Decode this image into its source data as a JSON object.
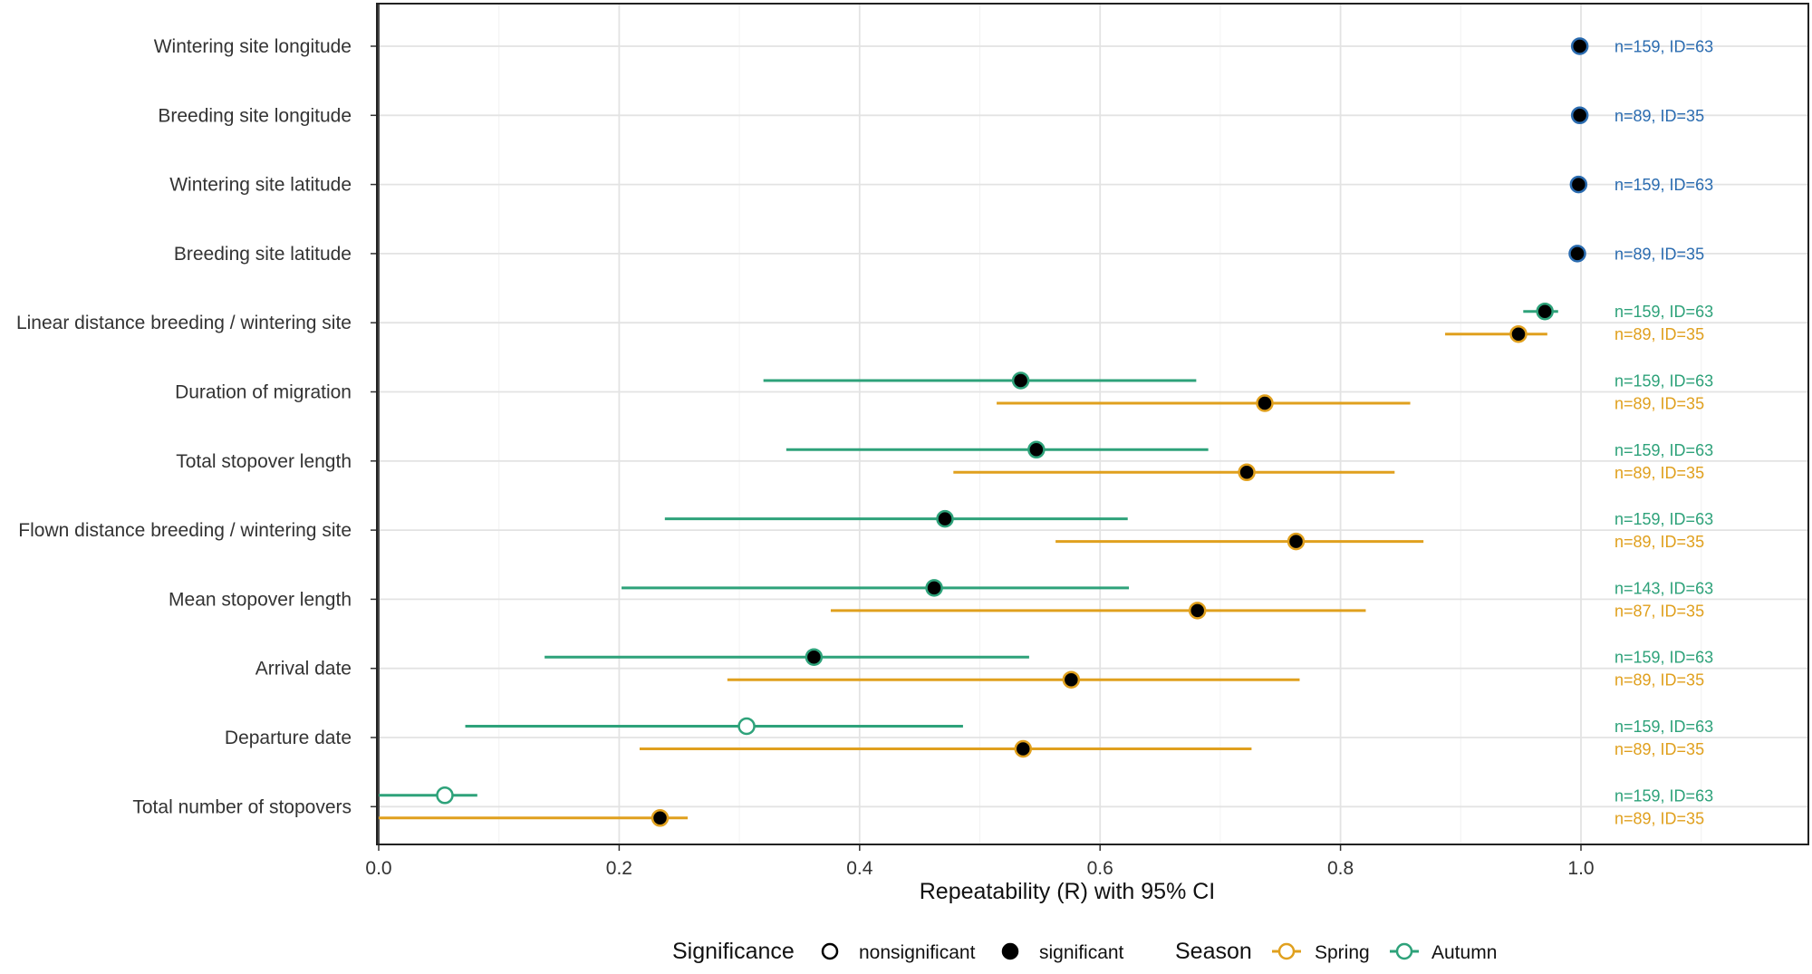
{
  "chart_data": {
    "type": "scatter",
    "title": "",
    "xlabel": "Repeatability (R) with 95% CI",
    "ylabel": "",
    "xlim": [
      0,
      1.19
    ],
    "xticks": [
      0.0,
      0.2,
      0.4,
      0.6,
      0.8,
      1.0
    ],
    "xtick_labels": [
      "0.0",
      "0.2",
      "0.4",
      "0.6",
      "0.8",
      "1.0"
    ],
    "grid": true,
    "legend_position": "bottom",
    "colors": {
      "spring": "#E0A01E",
      "autumn": "#2EA27A",
      "site": "#2B6CB0"
    },
    "categories": [
      "Wintering site longitude",
      "Breeding site longitude",
      "Wintering site latitude",
      "Breeding site latitude",
      "Linear distance breeding / wintering site",
      "Duration of migration",
      "Total stopover length",
      "Flown distance breeding / wintering site",
      "Mean stopover length",
      "Arrival date",
      "Departure date",
      "Total number of stopovers"
    ],
    "points": [
      {
        "category": "Wintering site longitude",
        "series": "site",
        "R": 0.999,
        "lo": 0.998,
        "hi": 1.0,
        "significant": true,
        "label": "n=159, ID=63"
      },
      {
        "category": "Breeding site longitude",
        "series": "site",
        "R": 0.999,
        "lo": 0.998,
        "hi": 1.0,
        "significant": true,
        "label": "n=89, ID=35"
      },
      {
        "category": "Wintering site latitude",
        "series": "site",
        "R": 0.998,
        "lo": 0.997,
        "hi": 0.999,
        "significant": true,
        "label": "n=159, ID=63"
      },
      {
        "category": "Breeding site latitude",
        "series": "site",
        "R": 0.997,
        "lo": 0.996,
        "hi": 0.998,
        "significant": true,
        "label": "n=89, ID=35"
      },
      {
        "category": "Linear distance breeding / wintering site",
        "series": "Autumn",
        "R": 0.97,
        "lo": 0.952,
        "hi": 0.981,
        "significant": true,
        "label": "n=159, ID=63"
      },
      {
        "category": "Linear distance breeding / wintering site",
        "series": "Spring",
        "R": 0.948,
        "lo": 0.887,
        "hi": 0.972,
        "significant": true,
        "label": "n=89, ID=35"
      },
      {
        "category": "Duration of migration",
        "series": "Autumn",
        "R": 0.534,
        "lo": 0.32,
        "hi": 0.68,
        "significant": true,
        "label": "n=159, ID=63"
      },
      {
        "category": "Duration of migration",
        "series": "Spring",
        "R": 0.737,
        "lo": 0.514,
        "hi": 0.858,
        "significant": true,
        "label": "n=89, ID=35"
      },
      {
        "category": "Total stopover length",
        "series": "Autumn",
        "R": 0.547,
        "lo": 0.339,
        "hi": 0.69,
        "significant": true,
        "label": "n=159, ID=63"
      },
      {
        "category": "Total stopover length",
        "series": "Spring",
        "R": 0.722,
        "lo": 0.478,
        "hi": 0.845,
        "significant": true,
        "label": "n=89, ID=35"
      },
      {
        "category": "Flown distance breeding / wintering site",
        "series": "Autumn",
        "R": 0.471,
        "lo": 0.238,
        "hi": 0.623,
        "significant": true,
        "label": "n=159, ID=63"
      },
      {
        "category": "Flown distance breeding / wintering site",
        "series": "Spring",
        "R": 0.763,
        "lo": 0.563,
        "hi": 0.869,
        "significant": true,
        "label": "n=89, ID=35"
      },
      {
        "category": "Mean stopover length",
        "series": "Autumn",
        "R": 0.462,
        "lo": 0.202,
        "hi": 0.624,
        "significant": true,
        "label": "n=143, ID=63"
      },
      {
        "category": "Mean stopover length",
        "series": "Spring",
        "R": 0.681,
        "lo": 0.376,
        "hi": 0.821,
        "significant": true,
        "label": "n=87, ID=35"
      },
      {
        "category": "Arrival date",
        "series": "Autumn",
        "R": 0.362,
        "lo": 0.138,
        "hi": 0.541,
        "significant": true,
        "label": "n=159, ID=63"
      },
      {
        "category": "Arrival date",
        "series": "Spring",
        "R": 0.576,
        "lo": 0.29,
        "hi": 0.766,
        "significant": true,
        "label": "n=89, ID=35"
      },
      {
        "category": "Departure date",
        "series": "Autumn",
        "R": 0.306,
        "lo": 0.072,
        "hi": 0.486,
        "significant": false,
        "label": "n=159, ID=63"
      },
      {
        "category": "Departure date",
        "series": "Spring",
        "R": 0.536,
        "lo": 0.217,
        "hi": 0.726,
        "significant": true,
        "label": "n=89, ID=35"
      },
      {
        "category": "Total number of stopovers",
        "series": "Autumn",
        "R": 0.055,
        "lo": 0.0,
        "hi": 0.082,
        "significant": false,
        "label": "n=159, ID=63"
      },
      {
        "category": "Total number of stopovers",
        "series": "Spring",
        "R": 0.234,
        "lo": 0.0,
        "hi": 0.257,
        "significant": true,
        "label": "n=89, ID=35"
      }
    ],
    "legend": {
      "significance_title": "Significance",
      "significance_items": [
        "nonsignificant",
        "significant"
      ],
      "season_title": "Season",
      "season_items": [
        "Spring",
        "Autumn"
      ]
    }
  }
}
